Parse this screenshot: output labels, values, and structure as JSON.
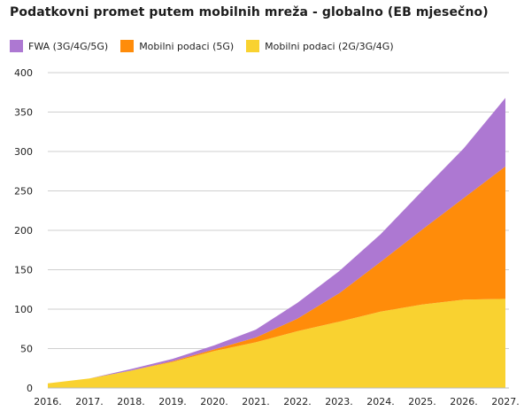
{
  "chart_data": {
    "type": "area",
    "stacked": true,
    "title": "Podatkovni promet putem mobilnih mreža - globalno (EB mjesečno)",
    "xlabel": "",
    "ylabel": "",
    "x": [
      "2016.",
      "2017.",
      "2018.",
      "2019.",
      "2020.",
      "2021.",
      "2022.",
      "2023.",
      "2024.",
      "2025.",
      "2026.",
      "2027."
    ],
    "ylim": [
      0,
      400
    ],
    "yticks": [
      0,
      50,
      100,
      150,
      200,
      250,
      300,
      350,
      400
    ],
    "grid": true,
    "legend_position": "top-left",
    "series": [
      {
        "name": "Mobilni podaci (2G/3G/4G)",
        "color": "#F9D230",
        "values": [
          6,
          12,
          22,
          33,
          47,
          58,
          72,
          84,
          97,
          106,
          112,
          113
        ]
      },
      {
        "name": "Mobilni podaci (5G)",
        "color": "#FF8C0A",
        "values": [
          0,
          0,
          0,
          1,
          2,
          6,
          16,
          36,
          63,
          95,
          129,
          168
        ]
      },
      {
        "name": "FWA (3G/4G/5G)",
        "color": "#AD78D2",
        "values": [
          0,
          0,
          2,
          3,
          5,
          10,
          20,
          28,
          35,
          49,
          63,
          87
        ]
      }
    ],
    "legend_order": [
      2,
      1,
      0
    ]
  }
}
